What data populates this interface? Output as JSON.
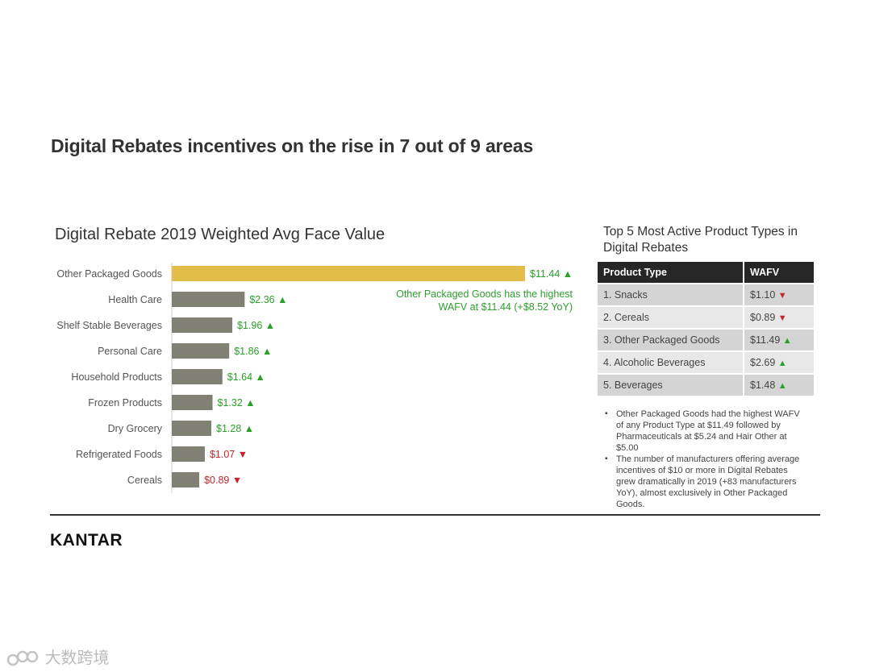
{
  "headline": "Digital Rebates incentives on the rise in 7 out of 9 areas",
  "chart_data": {
    "type": "bar",
    "orientation": "horizontal",
    "title": "Digital Rebate 2019 Weighted Avg Face Value",
    "categories": [
      "Other Packaged Goods",
      "Health Care",
      "Shelf Stable Beverages",
      "Personal Care",
      "Household Products",
      "Frozen Products",
      "Dry Grocery",
      "Refrigerated Foods",
      "Cereals"
    ],
    "values": [
      11.44,
      2.36,
      1.96,
      1.86,
      1.64,
      1.32,
      1.28,
      1.07,
      0.89
    ],
    "value_labels": [
      "$11.44",
      "$2.36",
      "$1.96",
      "$1.86",
      "$1.64",
      "$1.32",
      "$1.28",
      "$1.07",
      "$0.89"
    ],
    "trend": [
      "up",
      "up",
      "up",
      "up",
      "up",
      "up",
      "up",
      "down",
      "down"
    ],
    "highlight_index": 0,
    "colors": {
      "highlight": "#e2bd4a",
      "bar": "#808075",
      "up": "#2aa02a",
      "down": "#c4262e"
    },
    "xlim": [
      0,
      11.44
    ],
    "annotation": "Other Packaged Goods has the highest WAFV at $11.44 (+$8.52 YoY)"
  },
  "table": {
    "title": "Top 5 Most Active Product Types in Digital Rebates",
    "headers": [
      "Product Type",
      "WAFV"
    ],
    "rows": [
      {
        "type": "1. Snacks",
        "wafv": "$1.10",
        "trend": "down"
      },
      {
        "type": "2. Cereals",
        "wafv": "$0.89",
        "trend": "down"
      },
      {
        "type": "3. Other Packaged Goods",
        "wafv": "$11.49",
        "trend": "up"
      },
      {
        "type": "4. Alcoholic Beverages",
        "wafv": "$2.69",
        "trend": "up"
      },
      {
        "type": "5. Beverages",
        "wafv": "$1.48",
        "trend": "up"
      }
    ]
  },
  "notes": [
    "Other Packaged Goods had the highest WAFV of any Product Type at $11.49 followed by Pharmaceuticals at $5.24 and Hair Other at $5.00",
    "The number of manufacturers offering average incentives of $10 or more in Digital Rebates grew dramatically in 2019 (+83 manufacturers YoY), almost exclusively in Other Packaged Goods."
  ],
  "logo": "KANTAR",
  "watermark": "大数跨境",
  "icons": {
    "up": "▲",
    "down": "▼"
  }
}
